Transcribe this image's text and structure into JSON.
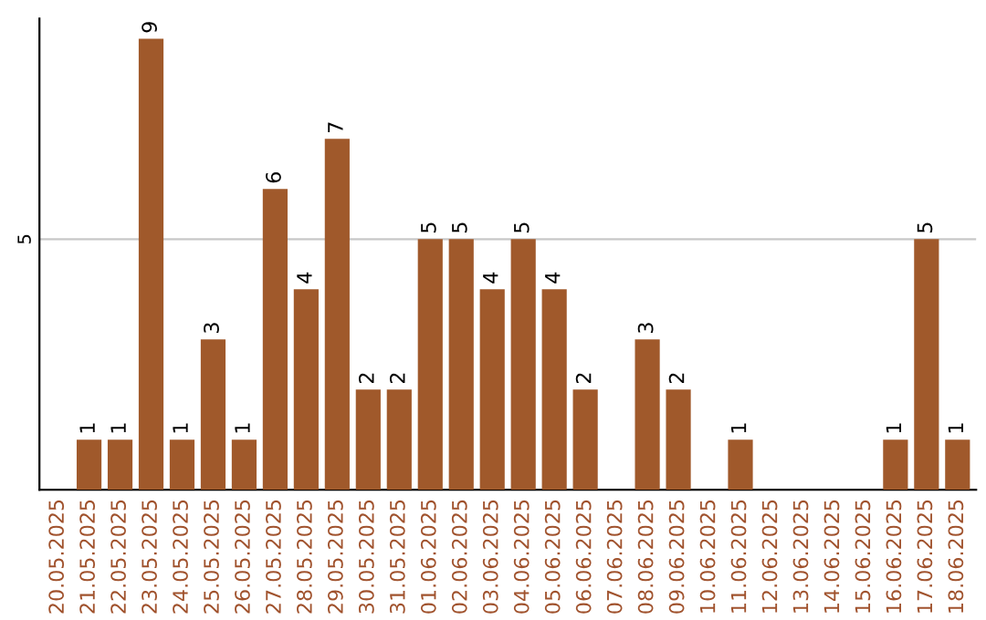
{
  "chart_data": {
    "type": "bar",
    "categories": [
      "20.05.2025",
      "21.05.2025",
      "22.05.2025",
      "23.05.2025",
      "24.05.2025",
      "25.05.2025",
      "26.05.2025",
      "27.05.2025",
      "28.05.2025",
      "29.05.2025",
      "30.05.2025",
      "31.05.2025",
      "01.06.2025",
      "02.06.2025",
      "03.06.2025",
      "04.06.2025",
      "05.06.2025",
      "06.06.2025",
      "07.06.2025",
      "08.06.2025",
      "09.06.2025",
      "10.06.2025",
      "11.06.2025",
      "12.06.2025",
      "13.06.2025",
      "14.06.2025",
      "15.06.2025",
      "16.06.2025",
      "17.06.2025",
      "18.06.2025"
    ],
    "values": [
      0,
      1,
      1,
      9,
      1,
      3,
      1,
      6,
      4,
      7,
      2,
      2,
      5,
      5,
      4,
      5,
      4,
      2,
      0,
      3,
      2,
      0,
      1,
      0,
      0,
      0,
      0,
      1,
      5,
      1
    ],
    "value_labels": [
      null,
      "1",
      "1",
      "9",
      "1",
      "3",
      "1",
      "6",
      "4",
      "7",
      "2",
      "2",
      "5",
      "5",
      "4",
      "5",
      "4",
      "2",
      null,
      "3",
      "2",
      null,
      "1",
      null,
      null,
      null,
      null,
      "1",
      "5",
      "1"
    ],
    "color": "#a0592b",
    "ylim": [
      0,
      9.4
    ],
    "yticks": [
      5
    ],
    "grid": "y"
  }
}
